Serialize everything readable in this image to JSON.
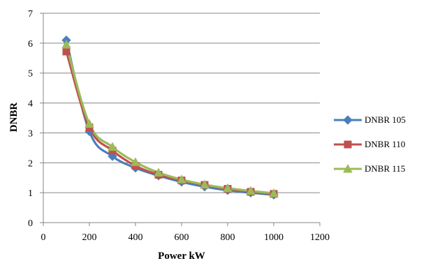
{
  "chart_data": {
    "type": "line",
    "title": "",
    "xlabel": "Power kW",
    "ylabel": "DNBR",
    "xlim": [
      0,
      1200
    ],
    "ylim": [
      0,
      7
    ],
    "x_ticks": [
      0,
      200,
      400,
      600,
      800,
      1000,
      1200
    ],
    "y_ticks": [
      0,
      1,
      2,
      3,
      4,
      5,
      6,
      7
    ],
    "grid": "horizontal",
    "legend_position": "right",
    "x": [
      100,
      200,
      300,
      400,
      500,
      600,
      700,
      800,
      900,
      1000
    ],
    "series": [
      {
        "name": "DNBR 105",
        "color": "#4a7ebb",
        "marker": "diamond",
        "values": [
          6.1,
          3.05,
          2.22,
          1.83,
          1.57,
          1.36,
          1.2,
          1.08,
          1.0,
          0.93
        ]
      },
      {
        "name": "DNBR 110",
        "color": "#c0504d",
        "marker": "square",
        "values": [
          5.72,
          3.18,
          2.41,
          1.9,
          1.6,
          1.41,
          1.26,
          1.13,
          1.03,
          0.96
        ]
      },
      {
        "name": "DNBR 115",
        "color": "#9bbb59",
        "marker": "triangle",
        "values": [
          5.95,
          3.3,
          2.53,
          2.02,
          1.67,
          1.44,
          1.27,
          1.15,
          1.06,
          0.98
        ]
      }
    ]
  }
}
